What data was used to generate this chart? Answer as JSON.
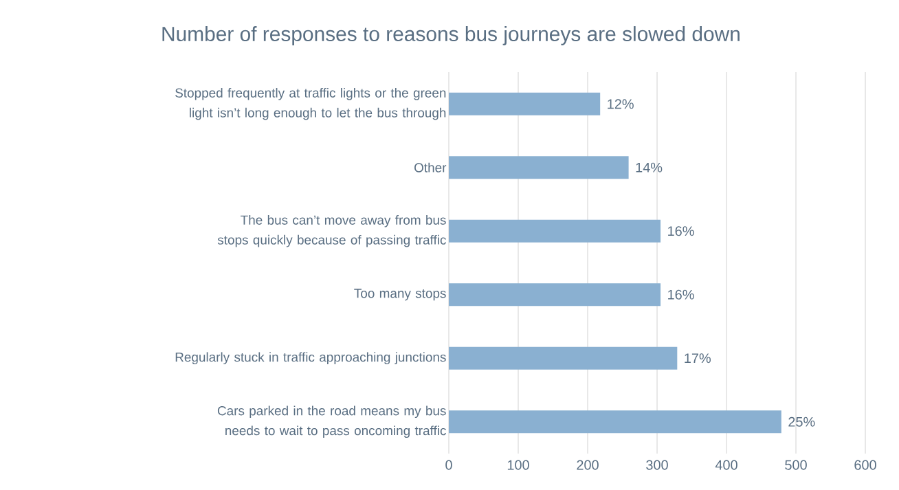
{
  "chart_data": {
    "type": "bar",
    "orientation": "horizontal",
    "title": "Number of responses to reasons bus journeys are slowed down",
    "categories": [
      "Stopped frequently at traffic lights or the green light isn’t long enough to let the bus through",
      "Other",
      "The bus can’t move away from bus stops quickly because of passing traffic",
      "Too many stops",
      "Regularly stuck in traffic approaching junctions",
      "Cars parked in the road means my bus needs to wait to pass oncoming traffic"
    ],
    "values": [
      218,
      259,
      305,
      305,
      329,
      479
    ],
    "annotations": [
      {
        "text": "12%",
        "x": 218,
        "y": "Stopped frequently at traffic lights or the green light isn’t long enough to let the bus through"
      },
      {
        "text": "14%",
        "x": 259,
        "y": "Other"
      },
      {
        "text": "16%",
        "x": 305,
        "y": "The bus can’t move away from bus stops quickly because of passing traffic"
      },
      {
        "text": "16%",
        "x": 305,
        "y": "Too many stops"
      },
      {
        "text": "17%",
        "x": 329,
        "y": "Regularly stuck in traffic approaching junctions"
      },
      {
        "text": "25%",
        "x": 479,
        "y": "Cars parked in the road means my bus needs to wait to pass oncoming traffic"
      }
    ],
    "color": "#8ab0d1",
    "xlim": [
      0,
      600
    ],
    "xticks": [
      0,
      100,
      200,
      300,
      400,
      500,
      600
    ],
    "grid": "x"
  }
}
